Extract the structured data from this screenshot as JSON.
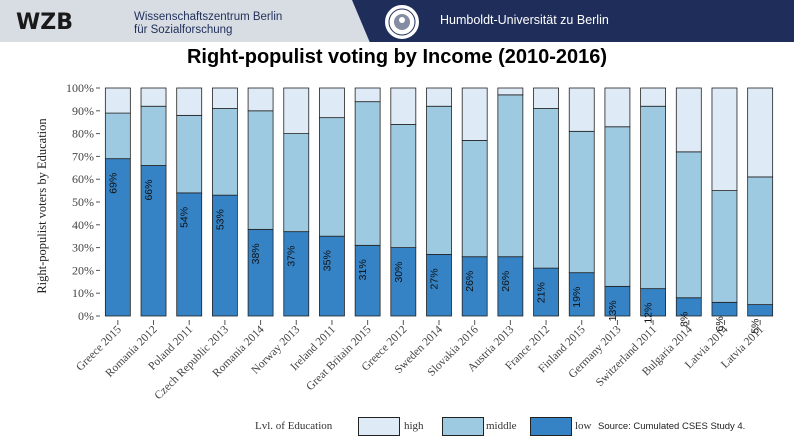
{
  "header": {
    "logo_text": "WZB",
    "wzb_line1": "Wissenschaftszentrum Berlin",
    "wzb_line2": "für Sozialforschung",
    "university": "Humboldt-Universität zu Berlin",
    "seal_icon": "university-seal-icon"
  },
  "chart_data": {
    "type": "bar",
    "stacked": true,
    "title": "Right-populist voting by Income (2010-2016)",
    "xlabel": "",
    "ylabel": "Right-populist voters by Education",
    "ylim": [
      0,
      100
    ],
    "ytick_labels": [
      "0%",
      "10%",
      "20%",
      "30%",
      "40%",
      "50%",
      "60%",
      "70%",
      "80%",
      "90%",
      "100%"
    ],
    "categories": [
      "Greece 2015",
      "Romania 2012",
      "Poland 2011",
      "Czech Republic 2013",
      "Romania 2014",
      "Norway 2013",
      "Ireland 2011",
      "Great Britain 2015",
      "Greece 2012",
      "Sweden 2014",
      "Slovakia 2016",
      "Austria 2013",
      "France 2012",
      "Finland 2015",
      "Germany 2013",
      "Switzerland 2011",
      "Bulgaria 2014",
      "Latvia 2014",
      "Latvia 2011"
    ],
    "series": [
      {
        "name": "low",
        "color": "#3582c4",
        "values": [
          69,
          66,
          54,
          53,
          38,
          37,
          35,
          31,
          30,
          27,
          26,
          26,
          21,
          19,
          13,
          12,
          8,
          6,
          5
        ]
      },
      {
        "name": "middle",
        "color": "#9ecae1",
        "values": [
          20,
          26,
          34,
          38,
          52,
          43,
          52,
          63,
          54,
          65,
          51,
          71,
          70,
          62,
          70,
          80,
          64,
          49,
          56
        ]
      },
      {
        "name": "high",
        "color": "#deebf7",
        "values": [
          11,
          8,
          12,
          9,
          10,
          20,
          13,
          6,
          16,
          8,
          23,
          3,
          9,
          19,
          17,
          8,
          28,
          45,
          39
        ]
      }
    ],
    "data_labels": [
      "69%",
      "66%",
      "54%",
      "53%",
      "38%",
      "37%",
      "35%",
      "31%",
      "30%",
      "27%",
      "26%",
      "26%",
      "21%",
      "19%",
      "13%",
      "12%",
      "8%",
      "6%",
      "5%"
    ],
    "legend": {
      "title": "Lvl. of Education",
      "position": "bottom",
      "entries": [
        "high",
        "middle",
        "low"
      ]
    }
  },
  "footer": {
    "source": "Source: Cumulated CSES Study 4."
  }
}
